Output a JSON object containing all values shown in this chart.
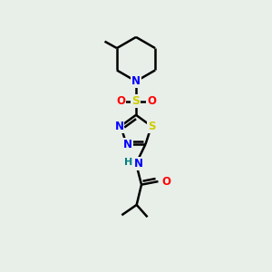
{
  "bg_color": "#e8eee8",
  "atom_colors": {
    "C": "#000000",
    "N": "#0000ff",
    "S": "#cccc00",
    "O": "#ff0000",
    "H": "#008080"
  },
  "bond_color": "#000000",
  "bond_width": 1.8,
  "fig_bg": "#e8eee8"
}
